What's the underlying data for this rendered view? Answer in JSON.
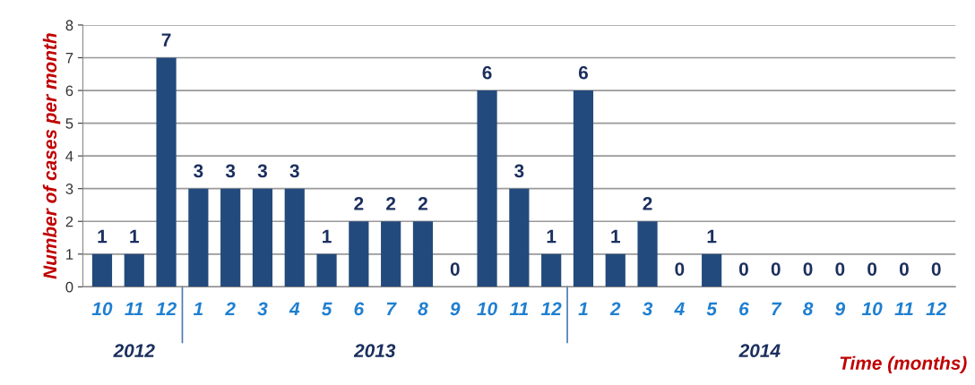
{
  "chart_data": {
    "type": "bar",
    "ylabel": "Number of cases per month",
    "xlabel": "Time (months)",
    "categories": [
      "10",
      "11",
      "12",
      "1",
      "2",
      "3",
      "4",
      "5",
      "6",
      "7",
      "8",
      "9",
      "10",
      "11",
      "12",
      "1",
      "2",
      "3",
      "4",
      "5",
      "6",
      "7",
      "8",
      "9",
      "10",
      "11",
      "12"
    ],
    "values": [
      1,
      1,
      7,
      3,
      3,
      3,
      3,
      1,
      2,
      2,
      2,
      0,
      6,
      3,
      1,
      6,
      1,
      2,
      0,
      1,
      0,
      0,
      0,
      0,
      0,
      0,
      0
    ],
    "color": "#234a7c",
    "ylim": [
      0,
      8
    ],
    "yticks": [
      0,
      1,
      2,
      3,
      4,
      5,
      6,
      7,
      8
    ],
    "grid": "y",
    "data_labels": true,
    "annotations": [
      "2012",
      "2013",
      "2014"
    ]
  }
}
